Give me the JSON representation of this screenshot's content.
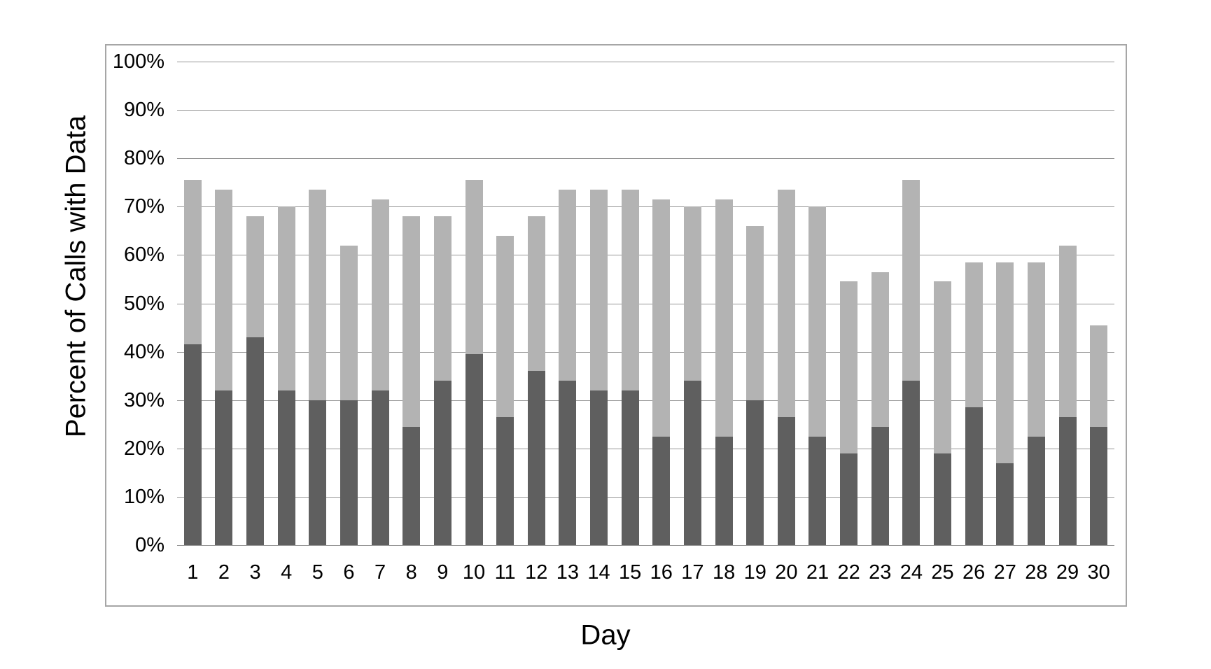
{
  "chart_data": {
    "type": "bar",
    "stacked": true,
    "title": "",
    "xlabel": "Day",
    "ylabel": "Percent of Calls with Data",
    "categories": [
      "1",
      "2",
      "3",
      "4",
      "5",
      "6",
      "7",
      "8",
      "9",
      "10",
      "11",
      "12",
      "13",
      "14",
      "15",
      "16",
      "17",
      "18",
      "19",
      "20",
      "21",
      "22",
      "23",
      "24",
      "25",
      "26",
      "27",
      "28",
      "29",
      "30"
    ],
    "series": [
      {
        "name": "dark-gray-bottom-segment",
        "color": "#5f5f5f",
        "values": [
          41.5,
          32,
          43,
          32,
          30,
          30,
          32,
          24.5,
          34,
          39.5,
          26.5,
          36,
          34,
          32,
          32,
          22.5,
          34,
          22.5,
          30,
          26.5,
          22.5,
          19,
          24.5,
          34,
          19,
          28.5,
          17,
          22.5,
          26.5,
          24.5
        ]
      },
      {
        "name": "light-gray-top-segment",
        "color": "#b3b3b3",
        "values": [
          34,
          41.5,
          25,
          38,
          43.5,
          32,
          39.5,
          43.5,
          34,
          36,
          37.5,
          32,
          39.5,
          41.5,
          41.5,
          49,
          36,
          49,
          36,
          47,
          47.5,
          35.5,
          32,
          41.5,
          35.5,
          30,
          41.5,
          36,
          35.5,
          21
        ]
      }
    ],
    "stack_totals": [
      75.5,
      73.5,
      68,
      70,
      73.5,
      62,
      71.5,
      68,
      68,
      75.5,
      64,
      68,
      73.5,
      73.5,
      73.5,
      71.5,
      70,
      71.5,
      66,
      73.5,
      70,
      54.5,
      56.5,
      75.5,
      54.5,
      58.5,
      58.5,
      58.5,
      62,
      45.5
    ],
    "ylim": [
      0,
      100
    ],
    "ytick_step": 10,
    "ytick_labels": [
      "0%",
      "10%",
      "20%",
      "30%",
      "40%",
      "50%",
      "60%",
      "70%",
      "80%",
      "90%",
      "100%"
    ],
    "grid": true,
    "legend": false,
    "colors": {
      "frame_border": "#a6a6a6",
      "gridline": "#969696",
      "background": "#ffffff",
      "text": "#000000"
    }
  }
}
